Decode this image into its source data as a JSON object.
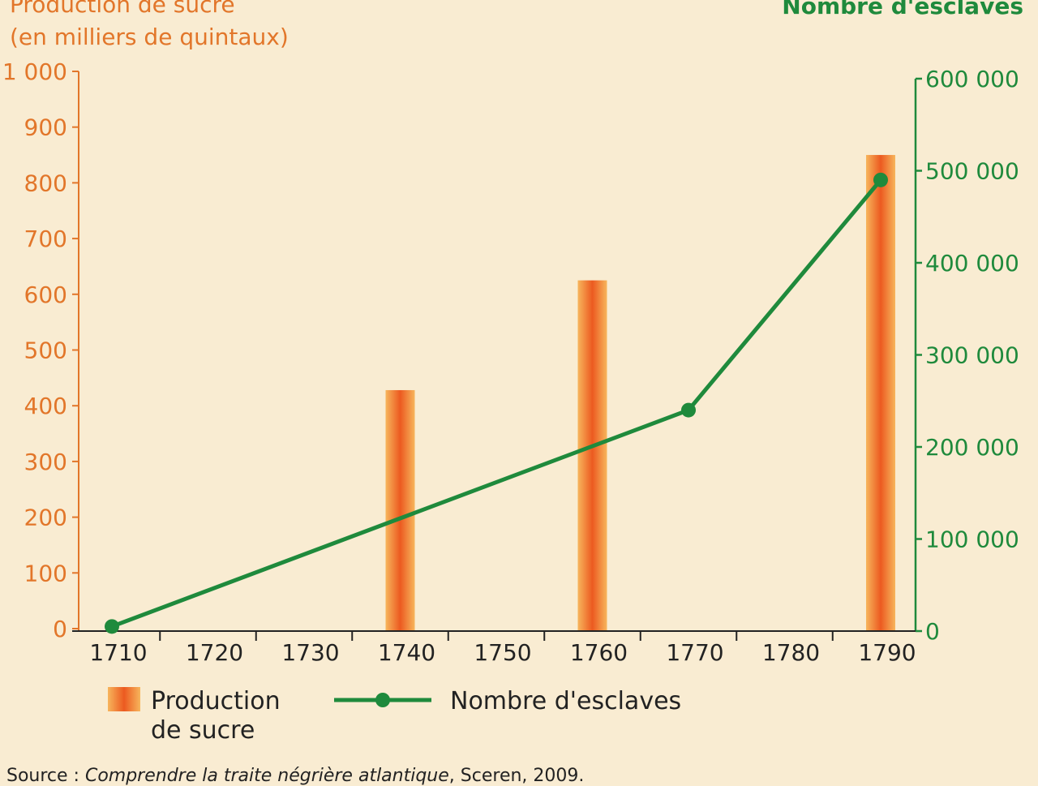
{
  "chart_data": {
    "type": "bar",
    "left_axis_title_line1": "Production de sucre",
    "left_axis_title_line2": "(en milliers de quintaux)",
    "right_axis_title": "Nombre d'esclaves",
    "categories": [
      "1710",
      "1720",
      "1730",
      "1740",
      "1750",
      "1760",
      "1770",
      "1780",
      "1790"
    ],
    "left_ticks": [
      "0",
      "100",
      "200",
      "300",
      "400",
      "500",
      "600",
      "700",
      "800",
      "900",
      "1 000"
    ],
    "right_ticks": [
      "0",
      "100 000",
      "200 000",
      "300 000",
      "400 000",
      "500 000",
      "600 000"
    ],
    "ylim_left": [
      0,
      1000
    ],
    "ylim_right": [
      0,
      600000
    ],
    "series": [
      {
        "name": "Production de sucre",
        "kind": "bar",
        "axis": "left",
        "x": [
          "1740",
          "1760",
          "1790"
        ],
        "values": [
          428,
          625,
          850
        ]
      },
      {
        "name": "Nombre d'esclaves",
        "kind": "line",
        "axis": "right",
        "x": [
          "1710",
          "1770",
          "1790"
        ],
        "values": [
          5000,
          240000,
          490000
        ]
      }
    ],
    "legend": {
      "placement": "bottom",
      "bar_label_line1": "Production",
      "bar_label_line2": "de sucre",
      "line_label": "Nombre d'esclaves"
    },
    "colors": {
      "left_axis": "#e2762a",
      "right_axis": "#1f8a3c",
      "bar_core": "#ec5a20",
      "bar_edge": "#f6b25c"
    },
    "grid": false
  },
  "source": {
    "prefix": "Source : ",
    "work": "Comprendre la traite négrière atlantique",
    "suffix": ", Sceren, 2009."
  }
}
